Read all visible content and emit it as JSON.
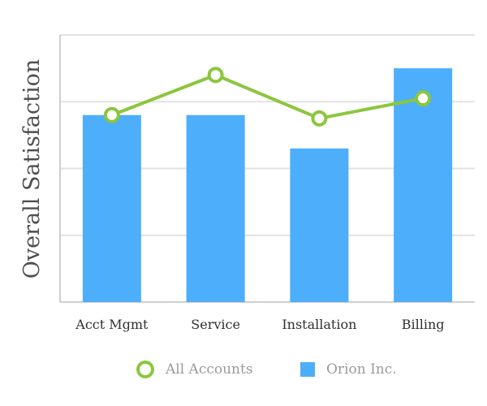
{
  "chart_data": {
    "type": "bar",
    "title": "",
    "xlabel": "",
    "ylabel": "Overall Satisfaction",
    "ylim": [
      0,
      4
    ],
    "grid": true,
    "legend_position": "bottom",
    "categories": [
      "Acct Mgmt",
      "Service",
      "Installation",
      "Billing"
    ],
    "series": [
      {
        "name": "Orion Inc.",
        "type": "bar",
        "color": "#4daefb",
        "values": [
          2.8,
          2.8,
          2.3,
          3.5
        ]
      },
      {
        "name": "All Accounts",
        "type": "line",
        "color": "#8cc63f",
        "values": [
          2.8,
          3.4,
          2.75,
          3.05
        ]
      }
    ],
    "grid_color": "#e2e2e2",
    "axis_color": "#cfcfcf"
  }
}
